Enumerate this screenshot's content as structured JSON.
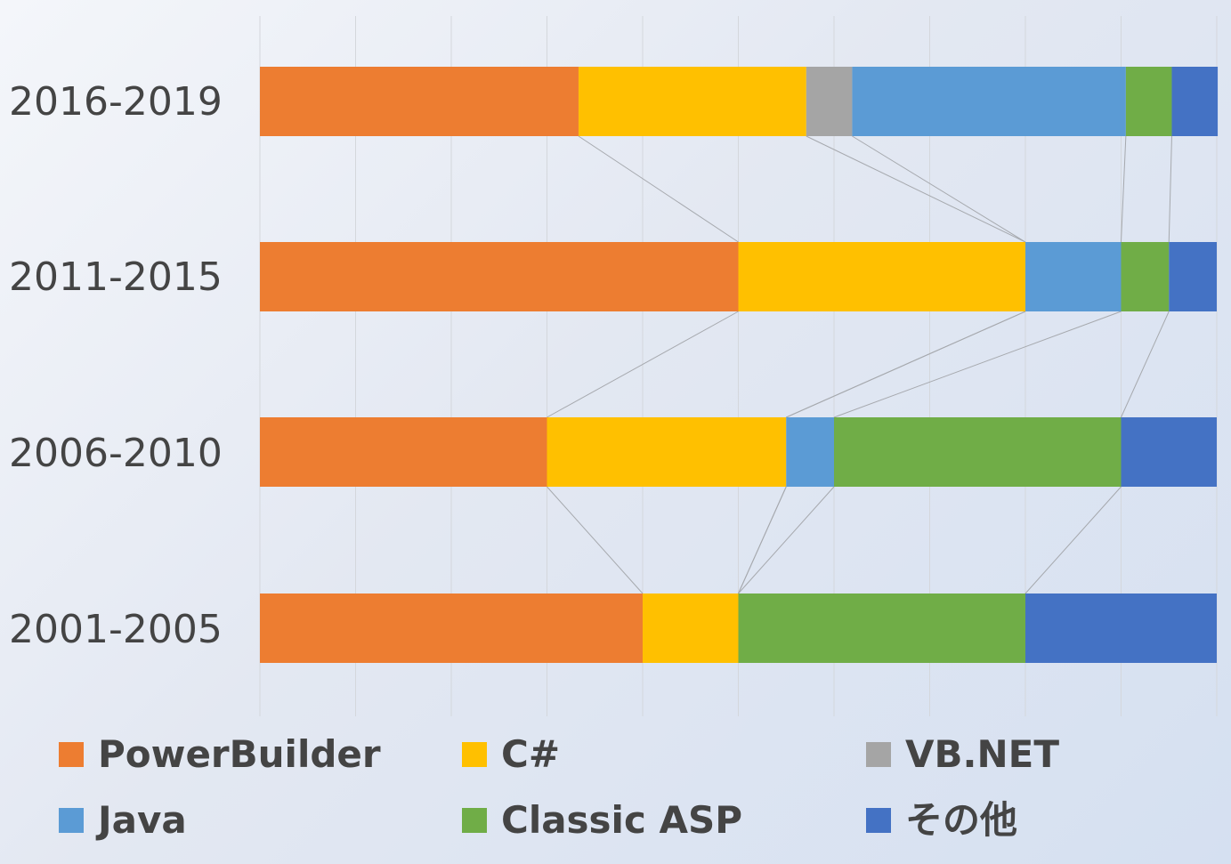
{
  "chart_data": {
    "type": "bar",
    "orientation": "horizontal",
    "stacked": "percent",
    "categories": [
      "2016-2019",
      "2011-2015",
      "2006-2010",
      "2001-2005"
    ],
    "series": [
      {
        "name": "PowerBuilder",
        "color": "#ED7D31",
        "values": [
          33.3,
          50,
          30,
          40
        ]
      },
      {
        "name": "C#",
        "color": "#FFC000",
        "values": [
          23.8,
          30,
          25,
          10
        ]
      },
      {
        "name": "VB.NET",
        "color": "#A5A5A5",
        "values": [
          4.8,
          0,
          0,
          0
        ]
      },
      {
        "name": "Java",
        "color": "#5B9BD5",
        "values": [
          28.6,
          10,
          5,
          0
        ]
      },
      {
        "name": "Classic ASP",
        "color": "#70AD47",
        "values": [
          4.8,
          5,
          30,
          30
        ]
      },
      {
        "name": "その他",
        "color": "#4472C4",
        "values": [
          4.8,
          5,
          10,
          20
        ]
      }
    ],
    "xlim": [
      0,
      100
    ],
    "grid": true,
    "series_lines": true,
    "legend_position": "bottom"
  }
}
